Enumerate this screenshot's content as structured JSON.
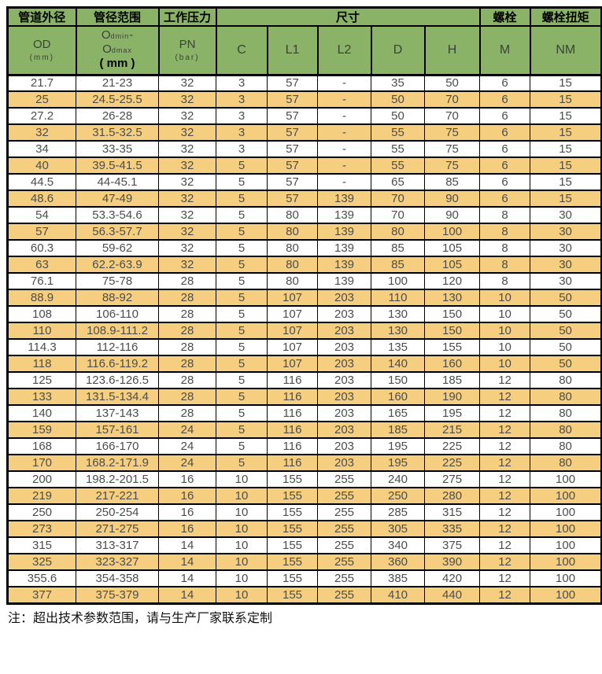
{
  "table": {
    "header_top": {
      "pipe_od": "管道外径",
      "diameter_range": "管径范围",
      "working_pressure": "工作压力",
      "dimensions": "尺寸",
      "bolt": "螺栓",
      "bolt_torque": "螺栓扭矩"
    },
    "header_sub": {
      "od_main": "OD",
      "od_unit": "(mm)",
      "range_o1": "O",
      "range_sub1": "dmin",
      "range_dash": "-",
      "range_o2": "O",
      "range_sub2": "dmax",
      "range_unit": "( mm )",
      "pn_main": "PN",
      "pn_unit": "(bar)",
      "dims": [
        "C",
        "L1",
        "L2",
        "D",
        "H"
      ],
      "bolt_m": "M",
      "torque_nm": "NM"
    },
    "rows": [
      [
        "21.7",
        "21-23",
        "32",
        "3",
        "57",
        "-",
        "35",
        "50",
        "6",
        "15"
      ],
      [
        "25",
        "24.5-25.5",
        "32",
        "3",
        "57",
        "-",
        "50",
        "70",
        "6",
        "15"
      ],
      [
        "27.2",
        "26-28",
        "32",
        "3",
        "57",
        "-",
        "50",
        "70",
        "6",
        "15"
      ],
      [
        "32",
        "31.5-32.5",
        "32",
        "3",
        "57",
        "-",
        "55",
        "75",
        "6",
        "15"
      ],
      [
        "34",
        "33-35",
        "32",
        "3",
        "57",
        "-",
        "55",
        "75",
        "6",
        "15"
      ],
      [
        "40",
        "39.5-41.5",
        "32",
        "5",
        "57",
        "-",
        "55",
        "75",
        "6",
        "15"
      ],
      [
        "44.5",
        "44-45.1",
        "32",
        "5",
        "57",
        "-",
        "65",
        "85",
        "6",
        "15"
      ],
      [
        "48.6",
        "47-49",
        "32",
        "5",
        "57",
        "139",
        "70",
        "90",
        "6",
        "15"
      ],
      [
        "54",
        "53.3-54.6",
        "32",
        "5",
        "80",
        "139",
        "70",
        "90",
        "8",
        "30"
      ],
      [
        "57",
        "56.3-57.7",
        "32",
        "5",
        "80",
        "139",
        "80",
        "100",
        "8",
        "30"
      ],
      [
        "60.3",
        "59-62",
        "32",
        "5",
        "80",
        "139",
        "85",
        "105",
        "8",
        "30"
      ],
      [
        "63",
        "62.2-63.9",
        "32",
        "5",
        "80",
        "139",
        "85",
        "105",
        "8",
        "30"
      ],
      [
        "76.1",
        "75-78",
        "28",
        "5",
        "80",
        "139",
        "100",
        "120",
        "8",
        "30"
      ],
      [
        "88.9",
        "88-92",
        "28",
        "5",
        "107",
        "203",
        "110",
        "130",
        "10",
        "50"
      ],
      [
        "108",
        "106-110",
        "28",
        "5",
        "107",
        "203",
        "130",
        "150",
        "10",
        "50"
      ],
      [
        "110",
        "108.9-111.2",
        "28",
        "5",
        "107",
        "203",
        "130",
        "150",
        "10",
        "50"
      ],
      [
        "114.3",
        "112-116",
        "28",
        "5",
        "107",
        "203",
        "135",
        "155",
        "10",
        "50"
      ],
      [
        "118",
        "116.6-119.2",
        "28",
        "5",
        "107",
        "203",
        "140",
        "160",
        "10",
        "50"
      ],
      [
        "125",
        "123.6-126.5",
        "28",
        "5",
        "116",
        "203",
        "150",
        "185",
        "12",
        "80"
      ],
      [
        "133",
        "131.5-134.4",
        "28",
        "5",
        "116",
        "203",
        "160",
        "190",
        "12",
        "80"
      ],
      [
        "140",
        "137-143",
        "28",
        "5",
        "116",
        "203",
        "165",
        "195",
        "12",
        "80"
      ],
      [
        "159",
        "157-161",
        "24",
        "5",
        "116",
        "203",
        "185",
        "215",
        "12",
        "80"
      ],
      [
        "168",
        "166-170",
        "24",
        "5",
        "116",
        "203",
        "195",
        "225",
        "12",
        "80"
      ],
      [
        "170",
        "168.2-171.9",
        "24",
        "5",
        "116",
        "203",
        "195",
        "225",
        "12",
        "80"
      ],
      [
        "200",
        "198.2-201.5",
        "16",
        "10",
        "155",
        "255",
        "240",
        "275",
        "12",
        "100"
      ],
      [
        "219",
        "217-221",
        "16",
        "10",
        "155",
        "255",
        "250",
        "280",
        "12",
        "100"
      ],
      [
        "250",
        "250-254",
        "16",
        "10",
        "155",
        "255",
        "285",
        "315",
        "12",
        "100"
      ],
      [
        "273",
        "271-275",
        "16",
        "10",
        "155",
        "255",
        "305",
        "335",
        "12",
        "100"
      ],
      [
        "315",
        "313-317",
        "14",
        "10",
        "155",
        "255",
        "340",
        "375",
        "12",
        "100"
      ],
      [
        "325",
        "323-327",
        "14",
        "10",
        "155",
        "255",
        "360",
        "390",
        "12",
        "100"
      ],
      [
        "355.6",
        "354-358",
        "14",
        "10",
        "155",
        "255",
        "385",
        "420",
        "12",
        "100"
      ],
      [
        "377",
        "375-379",
        "14",
        "10",
        "155",
        "255",
        "410",
        "440",
        "12",
        "100"
      ]
    ]
  },
  "note": "注：超出技术参数范围，请与生产厂家联系定制",
  "colors": {
    "header_green": "#8AB368",
    "row_orange": "#F5CF7F",
    "row_white": "#FFFFFF",
    "border_black": "#000000",
    "data_text": "#4D4D4D"
  }
}
